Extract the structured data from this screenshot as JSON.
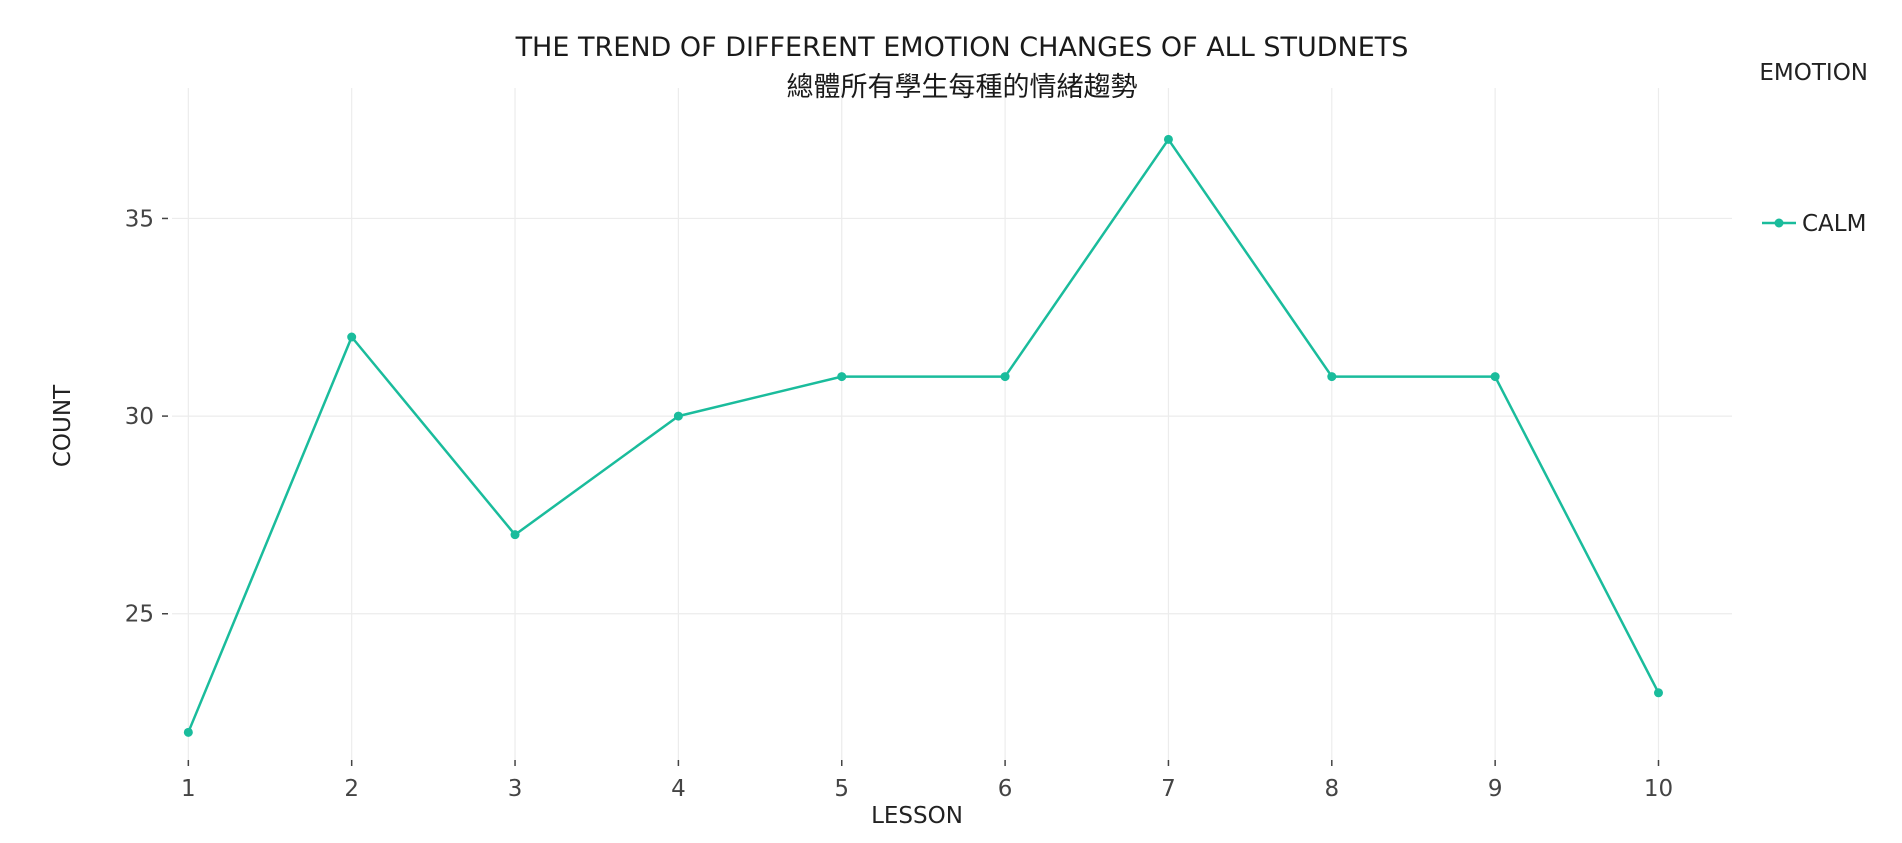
{
  "chart_data": {
    "type": "line",
    "title": "THE TREND OF DIFFERENT EMOTION CHANGES OF ALL STUDNETS",
    "subtitle": "總體所有學生每種的情緒趨勢",
    "xlabel": "LESSON",
    "ylabel": "COUNT",
    "legend_title": "EMOTION",
    "legend_position": "right",
    "grid": true,
    "x": [
      1,
      2,
      3,
      4,
      5,
      6,
      7,
      8,
      9,
      10
    ],
    "xticks": [
      "1",
      "2",
      "3",
      "4",
      "5",
      "6",
      "7",
      "8",
      "9",
      "10"
    ],
    "yticks": [
      "25",
      "30",
      "35"
    ],
    "xlim": [
      0.9,
      10.45
    ],
    "ylim": [
      21.3,
      38.3
    ],
    "series": [
      {
        "name": "CALM",
        "color": "#1abc9c",
        "values": [
          22,
          32,
          27,
          30,
          31,
          31,
          37,
          31,
          31,
          23
        ]
      }
    ]
  }
}
